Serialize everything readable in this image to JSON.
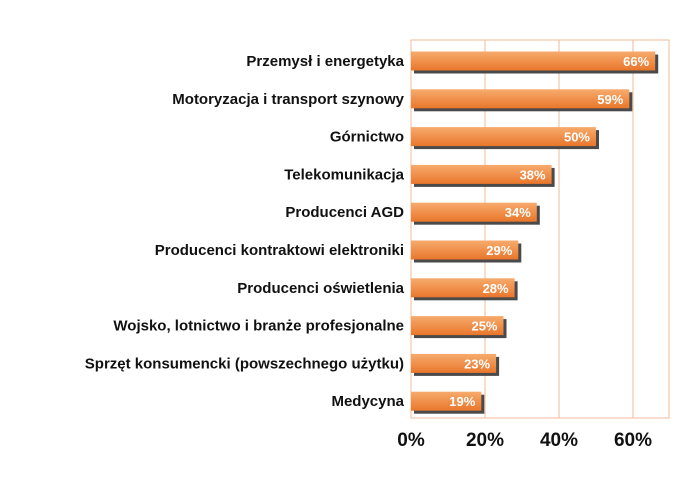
{
  "chart_data": {
    "type": "bar",
    "orientation": "horizontal",
    "categories": [
      "Przemysł i energetyka",
      "Motoryzacja i transport szynowy",
      "Górnictwo",
      "Telekomunikacja",
      "Producenci AGD",
      "Producenci kontraktowi elektroniki",
      "Producenci oświetlenia",
      "Wojsko, lotnictwo i branże profesjonalne",
      "Sprzęt konsumencki (powszechnego użytku)",
      "Medycyna"
    ],
    "values": [
      66,
      59,
      50,
      38,
      34,
      29,
      28,
      25,
      23,
      19
    ],
    "value_labels": [
      "66%",
      "59%",
      "50%",
      "38%",
      "34%",
      "29%",
      "28%",
      "25%",
      "23%",
      "19%"
    ],
    "xlim": [
      0,
      70
    ],
    "x_ticks": [
      0,
      20,
      40,
      60
    ],
    "x_tick_labels": [
      "0%",
      "20%",
      "40%",
      "60%"
    ],
    "grid": "vertical",
    "title": "",
    "xlabel": "",
    "ylabel": "",
    "colors": {
      "bar_top": "#f7ab6d",
      "bar_bottom": "#e9762b",
      "bar_shadow": "#4a4a4a",
      "grid": "#f0b89a",
      "frame": "#f0b89a"
    }
  }
}
